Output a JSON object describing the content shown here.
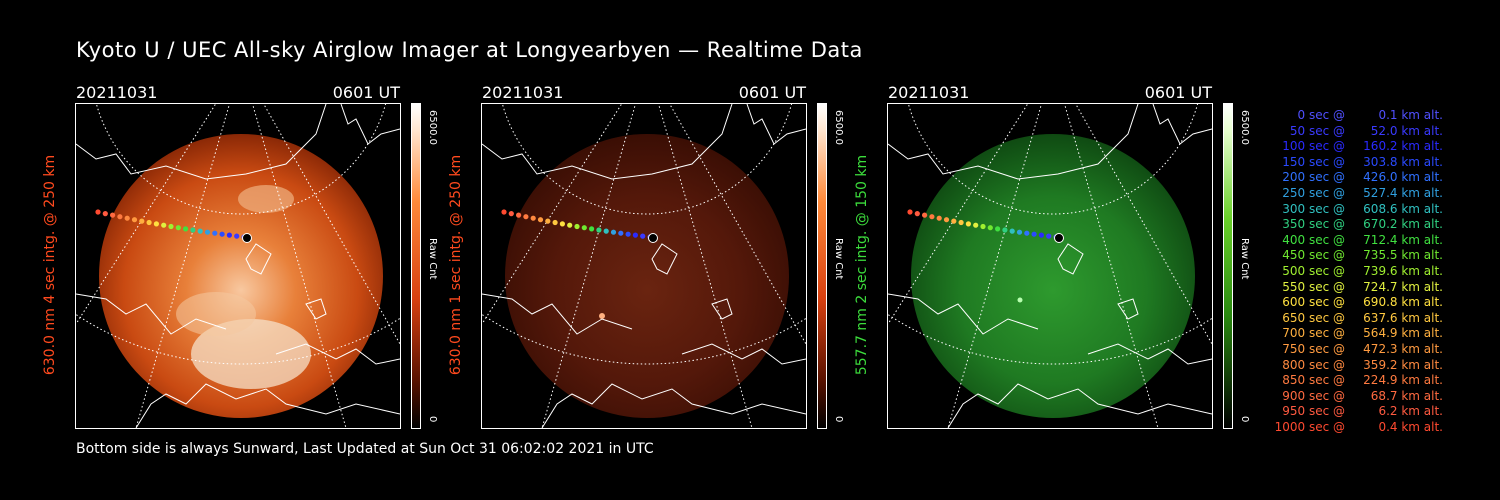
{
  "title": "Kyoto U / UEC All-sky Airglow Imager at Longyearbyen — Realtime Data",
  "footer": "Bottom side is always Sunward, Last Updated at Sun Oct 31 06:02:02 2021 in UTC",
  "panels": [
    {
      "date": "20211031",
      "time": "0601 UT",
      "label": "630.0 nm 4 sec intg. @ 250 km",
      "label_color": "#ff4a1e",
      "cbar_max": "6500.0",
      "cbar_unit": "Raw Cnt",
      "cbar_min": "0",
      "colormap": "red",
      "brightness": "high"
    },
    {
      "date": "20211031",
      "time": "0601 UT",
      "label": "630.0 nm 1 sec intg. @ 250 km",
      "label_color": "#ff4a1e",
      "cbar_max": "6500.0",
      "cbar_unit": "Raw Cnt",
      "cbar_min": "0",
      "colormap": "red",
      "brightness": "low"
    },
    {
      "date": "20211031",
      "time": "0601 UT",
      "label": "557.7 nm 2 sec intg. @ 150 km",
      "label_color": "#3cdc3c",
      "cbar_max": "6500.0",
      "cbar_unit": "Raw Cnt",
      "cbar_min": "0",
      "colormap": "green",
      "brightness": "low"
    }
  ],
  "legend": [
    {
      "sec": "0 sec @",
      "km": "0.1 km alt.",
      "color": "#5050ff"
    },
    {
      "sec": "50 sec @",
      "km": "52.0 km alt.",
      "color": "#3a3aff"
    },
    {
      "sec": "100 sec @",
      "km": "160.2 km alt.",
      "color": "#2a2aff"
    },
    {
      "sec": "150 sec @",
      "km": "303.8 km alt.",
      "color": "#2a4aff"
    },
    {
      "sec": "200 sec @",
      "km": "426.0 km alt.",
      "color": "#3070ff"
    },
    {
      "sec": "250 sec @",
      "km": "527.4 km alt.",
      "color": "#30a0e0"
    },
    {
      "sec": "300 sec @",
      "km": "608.6 km alt.",
      "color": "#30c0c0"
    },
    {
      "sec": "350 sec @",
      "km": "670.2 km alt.",
      "color": "#30d080"
    },
    {
      "sec": "400 sec @",
      "km": "712.4 km alt.",
      "color": "#40e040"
    },
    {
      "sec": "450 sec @",
      "km": "735.5 km alt.",
      "color": "#70e830"
    },
    {
      "sec": "500 sec @",
      "km": "739.6 km alt.",
      "color": "#a0f030"
    },
    {
      "sec": "550 sec @",
      "km": "724.7 km alt.",
      "color": "#e0f040"
    },
    {
      "sec": "600 sec @",
      "km": "690.8 km alt.",
      "color": "#ffe040"
    },
    {
      "sec": "650 sec @",
      "km": "637.6 km alt.",
      "color": "#ffc840"
    },
    {
      "sec": "700 sec @",
      "km": "564.9 km alt.",
      "color": "#ffb040"
    },
    {
      "sec": "750 sec @",
      "km": "472.3 km alt.",
      "color": "#ff9a40"
    },
    {
      "sec": "800 sec @",
      "km": "359.2 km alt.",
      "color": "#ff8a40"
    },
    {
      "sec": "850 sec @",
      "km": "224.9 km alt.",
      "color": "#ff7a40"
    },
    {
      "sec": "900 sec @",
      "km": "68.7 km alt.",
      "color": "#ff6a40"
    },
    {
      "sec": "950 sec @",
      "km": "6.2 km alt.",
      "color": "#ff5a40"
    },
    {
      "sec": "1000 sec @",
      "km": "0.4 km alt.",
      "color": "#ff4a30"
    }
  ]
}
